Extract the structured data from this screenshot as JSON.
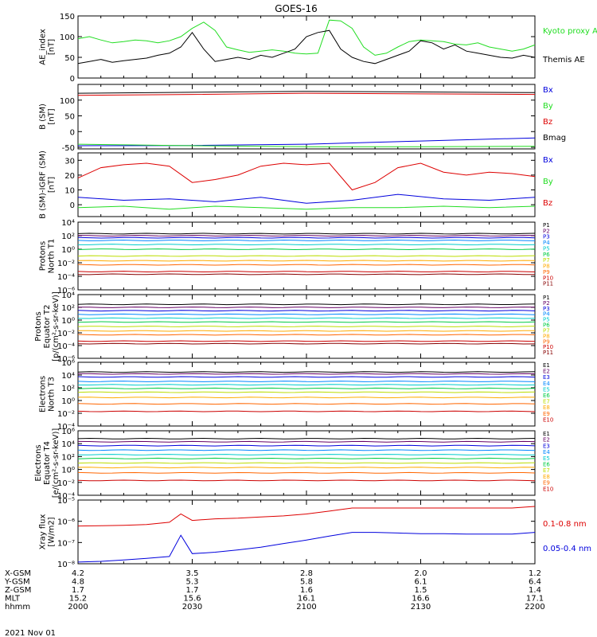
{
  "title": "GOES-16",
  "date": "2021 Nov 01",
  "colors": {
    "black": "#000000",
    "red": "#dd0000",
    "green": "#22dd22",
    "blue": "#0000dd"
  },
  "chart_data": [
    {
      "id": "ae",
      "type": "line",
      "ylabel": "AE_index\n[nT]",
      "ylim": [
        0,
        150
      ],
      "yticks": [
        {
          "v": 0,
          "l": "0"
        },
        {
          "v": 50,
          "l": "50"
        },
        {
          "v": 100,
          "l": "100"
        },
        {
          "v": 150,
          "l": "150"
        }
      ],
      "series": [
        {
          "name": "Kyoto proxy AE",
          "color": "#22dd22",
          "x": [
            2000,
            2005,
            2010,
            2015,
            2020,
            2025,
            2030,
            2035,
            2040,
            2045,
            2050,
            2055,
            2060,
            2065,
            2070,
            2075,
            2080,
            2085,
            2090,
            2095,
            2100,
            2105,
            2110,
            2115,
            2120,
            2125,
            2130,
            2135,
            2140,
            2145,
            2150,
            2155,
            2160,
            2165,
            2170,
            2175,
            2180,
            2185,
            2190,
            2195,
            2200
          ],
          "y": [
            95,
            100,
            92,
            85,
            88,
            92,
            90,
            85,
            90,
            100,
            120,
            135,
            115,
            75,
            68,
            62,
            65,
            68,
            65,
            60,
            58,
            60,
            140,
            138,
            120,
            75,
            55,
            60,
            75,
            88,
            92,
            90,
            88,
            82,
            80,
            85,
            75,
            70,
            65,
            70,
            80
          ]
        },
        {
          "name": "Themis AE",
          "color": "#000000",
          "x": [
            2000,
            2005,
            2010,
            2015,
            2020,
            2025,
            2030,
            2035,
            2040,
            2045,
            2050,
            2055,
            2060,
            2065,
            2070,
            2075,
            2080,
            2085,
            2090,
            2095,
            2100,
            2105,
            2110,
            2115,
            2120,
            2125,
            2130,
            2135,
            2140,
            2145,
            2150,
            2155,
            2160,
            2165,
            2170,
            2175,
            2180,
            2185,
            2190,
            2195,
            2200
          ],
          "y": [
            35,
            40,
            45,
            38,
            42,
            45,
            48,
            55,
            60,
            75,
            110,
            70,
            40,
            45,
            50,
            45,
            55,
            50,
            60,
            70,
            100,
            110,
            115,
            70,
            50,
            40,
            35,
            45,
            55,
            65,
            90,
            85,
            70,
            80,
            65,
            60,
            55,
            50,
            48,
            55,
            50
          ]
        }
      ]
    },
    {
      "id": "bsm",
      "type": "line",
      "ylabel": "B (SM)\n[nT]",
      "ylim": [
        -55,
        150
      ],
      "yticks": [
        {
          "v": -50,
          "l": "-50"
        },
        {
          "v": 0,
          "l": "0"
        },
        {
          "v": 50,
          "l": "50"
        },
        {
          "v": 100,
          "l": "100"
        }
      ],
      "series": [
        {
          "name": "Bx",
          "color": "#0000dd",
          "x": [
            2000,
            2050,
            2100,
            2150,
            2200
          ],
          "y": [
            -45,
            -44,
            -40,
            -30,
            -20
          ]
        },
        {
          "name": "By",
          "color": "#22dd22",
          "x": [
            2000,
            2050,
            2100,
            2150,
            2200
          ],
          "y": [
            -40,
            -45,
            -48,
            -48,
            -47
          ]
        },
        {
          "name": "Bz",
          "color": "#dd0000",
          "x": [
            2000,
            2050,
            2100,
            2150,
            2200
          ],
          "y": [
            115,
            118,
            122,
            120,
            118
          ]
        },
        {
          "name": "Bmag",
          "color": "#000000",
          "x": [
            2000,
            2050,
            2100,
            2150,
            2200
          ],
          "y": [
            122,
            125,
            128,
            126,
            124
          ]
        }
      ]
    },
    {
      "id": "bigrf",
      "type": "line",
      "ylabel": "B (SM)-IGRF (SM)\n[nT]",
      "ylim": [
        -8,
        35
      ],
      "yticks": [
        {
          "v": 0,
          "l": "0"
        },
        {
          "v": 10,
          "l": "10"
        },
        {
          "v": 20,
          "l": "20"
        },
        {
          "v": 30,
          "l": "30"
        }
      ],
      "series": [
        {
          "name": "Bx",
          "color": "#0000dd",
          "x": [
            2000,
            2020,
            2040,
            2060,
            2080,
            2100,
            2120,
            2140,
            2160,
            2180,
            2200
          ],
          "y": [
            5,
            3,
            4,
            2,
            5,
            1,
            3,
            7,
            4,
            3,
            5
          ]
        },
        {
          "name": "By",
          "color": "#22dd22",
          "x": [
            2000,
            2020,
            2040,
            2060,
            2080,
            2100,
            2120,
            2140,
            2160,
            2180,
            2200
          ],
          "y": [
            -2,
            -1,
            -3,
            -1,
            -2,
            -3,
            -2,
            -2,
            -1,
            -2,
            -1
          ]
        },
        {
          "name": "Bz",
          "color": "#dd0000",
          "x": [
            2000,
            2010,
            2020,
            2030,
            2040,
            2050,
            2060,
            2070,
            2080,
            2090,
            2100,
            2110,
            2120,
            2130,
            2140,
            2150,
            2160,
            2170,
            2180,
            2190,
            2200
          ],
          "y": [
            18,
            25,
            27,
            28,
            26,
            15,
            17,
            20,
            26,
            28,
            27,
            28,
            10,
            15,
            25,
            28,
            22,
            20,
            22,
            21,
            19
          ]
        }
      ]
    },
    {
      "id": "pn",
      "type": "line",
      "ylabel": "Protons\nNorth T1",
      "log": true,
      "ylim": [
        1e-06,
        10000.0
      ],
      "yticks": [
        {
          "v": 10000,
          "l": "10⁴"
        },
        {
          "v": 100,
          "l": "10²"
        },
        {
          "v": 1,
          "l": "10⁰"
        },
        {
          "v": 0.01,
          "l": "10⁻²"
        },
        {
          "v": 0.0001,
          "l": "10⁻⁴"
        },
        {
          "v": 1e-06,
          "l": "10⁻⁶"
        }
      ],
      "series": [
        {
          "name": "P1",
          "color": "#000000",
          "level": 200
        },
        {
          "name": "P2",
          "color": "#660066",
          "level": 100
        },
        {
          "name": "P3",
          "color": "#0000dd",
          "level": 50
        },
        {
          "name": "P4",
          "color": "#0088ff",
          "level": 20
        },
        {
          "name": "P5",
          "color": "#00cccc",
          "level": 5
        },
        {
          "name": "P6",
          "color": "#00cc44",
          "level": 1
        },
        {
          "name": "P7",
          "color": "#bbdd00",
          "level": 0.1
        },
        {
          "name": "P8",
          "color": "#ffaa00",
          "level": 0.02
        },
        {
          "name": "P9",
          "color": "#ff6600",
          "level": 0.005
        },
        {
          "name": "P10",
          "color": "#cc0000",
          "level": 0.0005
        },
        {
          "name": "P11",
          "color": "#880000",
          "level": 0.0002
        }
      ]
    },
    {
      "id": "pe",
      "type": "line",
      "ylabel": "Protons\nEquator T2\n[p/(cm²-s-sr-keV)]",
      "log": true,
      "ylim": [
        1e-06,
        10000.0
      ],
      "yticks": [
        {
          "v": 10000,
          "l": "10⁴"
        },
        {
          "v": 100,
          "l": "10²"
        },
        {
          "v": 1,
          "l": "10⁰"
        },
        {
          "v": 0.01,
          "l": "10⁻²"
        },
        {
          "v": 0.0001,
          "l": "10⁻⁴"
        },
        {
          "v": 1e-06,
          "l": "10⁻⁶"
        }
      ],
      "series": [
        {
          "name": "P1",
          "color": "#000000",
          "level": 300
        },
        {
          "name": "P2",
          "color": "#660066",
          "level": 100
        },
        {
          "name": "P3",
          "color": "#0000dd",
          "level": 30
        },
        {
          "name": "P4",
          "color": "#0088ff",
          "level": 8
        },
        {
          "name": "P5",
          "color": "#00cccc",
          "level": 2
        },
        {
          "name": "P6",
          "color": "#00cc44",
          "level": 0.5
        },
        {
          "name": "P7",
          "color": "#bbdd00",
          "level": 0.1
        },
        {
          "name": "P8",
          "color": "#ffaa00",
          "level": 0.02
        },
        {
          "name": "P9",
          "color": "#ff6600",
          "level": 0.005
        },
        {
          "name": "P10",
          "color": "#cc0000",
          "level": 0.0005
        },
        {
          "name": "P11",
          "color": "#880000",
          "level": 0.0002
        }
      ]
    },
    {
      "id": "en",
      "type": "line",
      "ylabel": "Electrons\nNorth T3",
      "log": true,
      "ylim": [
        0.0001,
        1000000.0
      ],
      "yticks": [
        {
          "v": 1000000,
          "l": "10⁶"
        },
        {
          "v": 10000,
          "l": "10⁴"
        },
        {
          "v": 100,
          "l": "10²"
        },
        {
          "v": 1,
          "l": "10⁰"
        },
        {
          "v": 0.01,
          "l": "10⁻²"
        },
        {
          "v": 0.0001,
          "l": "10⁻⁴"
        }
      ],
      "series": [
        {
          "name": "E1",
          "color": "#000000",
          "level": 30000
        },
        {
          "name": "E2",
          "color": "#660066",
          "level": 15000
        },
        {
          "name": "E3",
          "color": "#0000dd",
          "level": 5000
        },
        {
          "name": "E4",
          "color": "#0088ff",
          "level": 1000
        },
        {
          "name": "E5",
          "color": "#00cccc",
          "level": 300
        },
        {
          "name": "E6",
          "color": "#00cc44",
          "level": 80
        },
        {
          "name": "E7",
          "color": "#bbdd00",
          "level": 20
        },
        {
          "name": "E8",
          "color": "#ffaa00",
          "level": 3
        },
        {
          "name": "E9",
          "color": "#ff6600",
          "level": 0.3
        },
        {
          "name": "E10",
          "color": "#cc0000",
          "level": 0.02
        }
      ]
    },
    {
      "id": "ee",
      "type": "line",
      "ylabel": "Electrons\nEquator T4\n[e/(cm²-s-sr-keV)]",
      "log": true,
      "ylim": [
        0.0001,
        1000000.0
      ],
      "yticks": [
        {
          "v": 1000000,
          "l": "10⁶"
        },
        {
          "v": 10000,
          "l": "10⁴"
        },
        {
          "v": 100,
          "l": "10²"
        },
        {
          "v": 1,
          "l": "10⁰"
        },
        {
          "v": 0.01,
          "l": "10⁻²"
        },
        {
          "v": 0.0001,
          "l": "10⁻⁴"
        }
      ],
      "series": [
        {
          "name": "E1",
          "color": "#000000",
          "level": 60000
        },
        {
          "name": "E2",
          "color": "#660066",
          "level": 20000
        },
        {
          "name": "E3",
          "color": "#0000dd",
          "level": 5000
        },
        {
          "name": "E4",
          "color": "#0088ff",
          "level": 1000
        },
        {
          "name": "E5",
          "color": "#00cccc",
          "level": 200
        },
        {
          "name": "E6",
          "color": "#00cc44",
          "level": 50
        },
        {
          "name": "E7",
          "color": "#bbdd00",
          "level": 10
        },
        {
          "name": "E8",
          "color": "#ffaa00",
          "level": 2
        },
        {
          "name": "E9",
          "color": "#ff6600",
          "level": 0.3
        },
        {
          "name": "E10",
          "color": "#cc0000",
          "level": 0.02
        }
      ]
    },
    {
      "id": "xray",
      "type": "line",
      "ylabel": "Xray flux\n[W/m2]",
      "log": true,
      "ylim": [
        1e-08,
        1e-05
      ],
      "yticks": [
        {
          "v": 1e-05,
          "l": "10⁻⁵"
        },
        {
          "v": 1e-06,
          "l": "10⁻⁶"
        },
        {
          "v": 1e-07,
          "l": "10⁻⁷"
        },
        {
          "v": 1e-08,
          "l": "10⁻⁸"
        }
      ],
      "series": [
        {
          "name": "0.1-0.8 nm",
          "color": "#dd0000",
          "x": [
            2000,
            2010,
            2020,
            2030,
            2040,
            2045,
            2050,
            2055,
            2060,
            2070,
            2080,
            2090,
            2100,
            2110,
            2120,
            2130,
            2140,
            2150,
            2160,
            2170,
            2180,
            2190,
            2200
          ],
          "y": [
            6e-07,
            6.2e-07,
            6.5e-07,
            7e-07,
            9e-07,
            2.2e-06,
            1.1e-06,
            1.2e-06,
            1.3e-06,
            1.4e-06,
            1.6e-06,
            1.8e-06,
            2.2e-06,
            3e-06,
            4.2e-06,
            4.2e-06,
            4.2e-06,
            4.2e-06,
            4.2e-06,
            4.2e-06,
            4.2e-06,
            4.2e-06,
            5e-06
          ]
        },
        {
          "name": "0.05-0.4 nm",
          "color": "#0000dd",
          "x": [
            2000,
            2010,
            2020,
            2030,
            2040,
            2045,
            2050,
            2055,
            2060,
            2070,
            2080,
            2090,
            2100,
            2110,
            2120,
            2130,
            2140,
            2150,
            2160,
            2170,
            2180,
            2190,
            2200
          ],
          "y": [
            1.2e-08,
            1.3e-08,
            1.5e-08,
            1.8e-08,
            2.2e-08,
            2.2e-07,
            3e-08,
            3.2e-08,
            3.5e-08,
            4.5e-08,
            6e-08,
            9e-08,
            1.3e-07,
            2e-07,
            3e-07,
            3e-07,
            2.8e-07,
            2.6e-07,
            2.6e-07,
            2.5e-07,
            2.5e-07,
            2.5e-07,
            3e-07
          ]
        }
      ]
    }
  ],
  "xaxis": {
    "rows": [
      {
        "label": "X-GSM",
        "values": [
          "4.2",
          "3.5",
          "2.8",
          "2.0",
          "1.2"
        ]
      },
      {
        "label": "Y-GSM",
        "values": [
          "4.8",
          "5.3",
          "5.8",
          "6.1",
          "6.4"
        ]
      },
      {
        "label": "Z-GSM",
        "values": [
          "1.7",
          "1.7",
          "1.6",
          "1.5",
          "1.4"
        ]
      },
      {
        "label": "MLT",
        "values": [
          "15.2",
          "15.6",
          "16.1",
          "16.6",
          "17.1"
        ]
      },
      {
        "label": "hhmm",
        "values": [
          "2000",
          "2030",
          "2100",
          "2130",
          "2200"
        ]
      }
    ]
  }
}
